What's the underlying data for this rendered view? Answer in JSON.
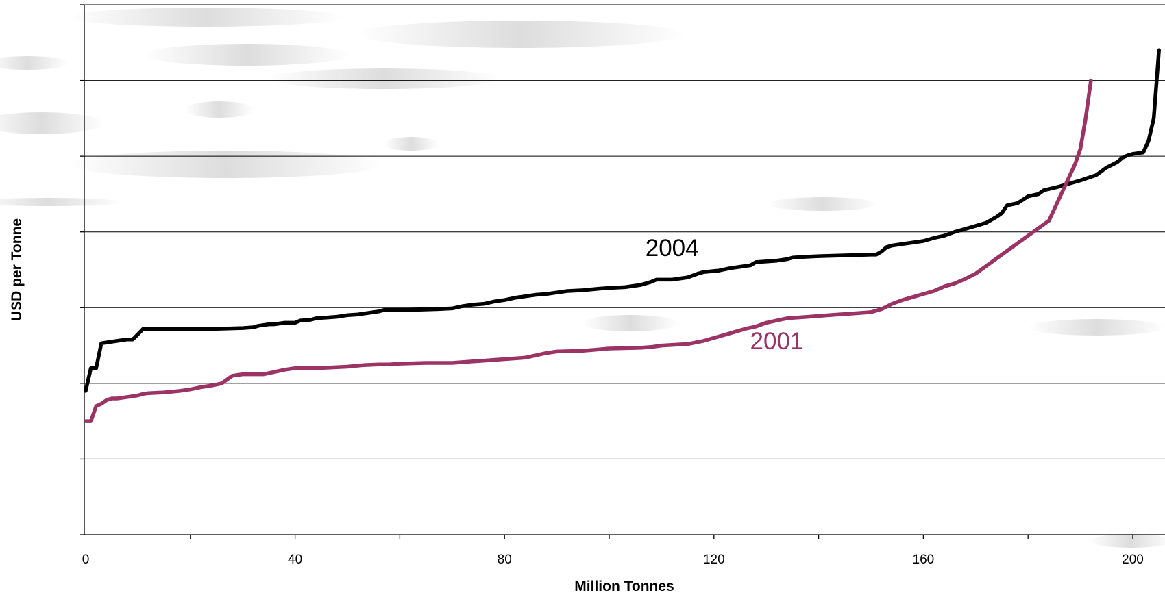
{
  "chart_data": {
    "type": "line",
    "title": "",
    "xlabel": "Million Tonnes",
    "ylabel": "USD per Tonne",
    "xlim": [
      0,
      205
    ],
    "ylim": [
      0,
      7
    ],
    "x_ticks": [
      0,
      40,
      80,
      120,
      160,
      200
    ],
    "x_tick_labels": [
      "0",
      "40",
      "80",
      "120",
      "160",
      "200"
    ],
    "y_tick_labels": [],
    "grid": "horizontal",
    "series": [
      {
        "name": "2004",
        "color": "#000000",
        "label_at": [
          112,
          3.68
        ],
        "x": [
          0,
          1,
          2,
          3,
          4,
          6,
          8,
          9,
          10,
          11,
          12,
          16,
          20,
          25,
          30,
          32,
          33,
          35,
          36,
          38,
          40,
          41,
          43,
          44,
          46,
          48,
          50,
          52,
          54,
          56,
          57,
          58,
          62,
          67,
          70,
          72,
          74,
          76,
          78,
          80,
          82,
          84,
          86,
          88,
          90,
          92,
          95,
          98,
          100,
          103,
          106,
          108,
          109,
          112,
          115,
          117,
          118,
          121,
          123,
          125,
          127,
          128,
          132,
          134,
          135,
          137,
          140,
          145,
          150,
          151,
          152,
          153,
          154,
          156,
          160,
          162,
          164,
          166,
          168,
          169,
          171,
          172,
          174,
          175,
          176,
          178,
          180,
          182,
          183,
          186,
          188,
          190,
          193,
          195,
          197,
          198,
          199,
          200,
          202,
          203,
          204,
          205
        ],
        "y": [
          1.9,
          2.2,
          2.2,
          2.53,
          2.54,
          2.56,
          2.58,
          2.58,
          2.65,
          2.72,
          2.72,
          2.72,
          2.72,
          2.72,
          2.73,
          2.74,
          2.76,
          2.78,
          2.78,
          2.8,
          2.8,
          2.83,
          2.84,
          2.86,
          2.87,
          2.88,
          2.9,
          2.91,
          2.93,
          2.95,
          2.97,
          2.97,
          2.97,
          2.98,
          2.99,
          3.02,
          3.04,
          3.05,
          3.08,
          3.1,
          3.13,
          3.15,
          3.17,
          3.18,
          3.2,
          3.22,
          3.23,
          3.25,
          3.26,
          3.27,
          3.3,
          3.34,
          3.37,
          3.37,
          3.4,
          3.45,
          3.47,
          3.49,
          3.52,
          3.54,
          3.56,
          3.6,
          3.62,
          3.64,
          3.66,
          3.67,
          3.68,
          3.69,
          3.7,
          3.7,
          3.74,
          3.8,
          3.82,
          3.84,
          3.88,
          3.92,
          3.95,
          4.0,
          4.04,
          4.06,
          4.1,
          4.12,
          4.2,
          4.25,
          4.35,
          4.38,
          4.47,
          4.5,
          4.55,
          4.6,
          4.64,
          4.68,
          4.75,
          4.85,
          4.92,
          4.98,
          5.01,
          5.03,
          5.05,
          5.2,
          5.5,
          6.4
        ]
      },
      {
        "name": "2001",
        "color": "#9B3365",
        "label_at": [
          132,
          2.45
        ],
        "x": [
          0,
          1,
          2,
          3,
          4,
          5,
          6,
          8,
          10,
          11,
          12,
          15,
          18,
          20,
          22,
          24,
          26,
          28,
          30,
          34,
          36,
          38,
          40,
          42,
          44,
          47,
          50,
          53,
          56,
          58,
          60,
          65,
          70,
          74,
          76,
          80,
          84,
          86,
          88,
          90,
          95,
          100,
          106,
          108,
          110,
          115,
          118,
          120,
          122,
          124,
          126,
          128,
          130,
          132,
          134,
          138,
          142,
          146,
          150,
          152,
          154,
          156,
          158,
          160,
          162,
          164,
          166,
          168,
          170,
          172,
          174,
          176,
          178,
          180,
          182,
          184,
          185,
          186,
          187,
          188,
          189,
          190,
          191,
          192
        ],
        "y": [
          1.5,
          1.5,
          1.7,
          1.73,
          1.78,
          1.8,
          1.8,
          1.82,
          1.84,
          1.86,
          1.87,
          1.88,
          1.9,
          1.92,
          1.95,
          1.97,
          2.0,
          2.1,
          2.12,
          2.12,
          2.15,
          2.18,
          2.2,
          2.2,
          2.2,
          2.21,
          2.22,
          2.24,
          2.25,
          2.25,
          2.26,
          2.27,
          2.27,
          2.29,
          2.3,
          2.32,
          2.34,
          2.37,
          2.4,
          2.42,
          2.43,
          2.46,
          2.47,
          2.48,
          2.5,
          2.52,
          2.56,
          2.6,
          2.64,
          2.68,
          2.72,
          2.75,
          2.8,
          2.83,
          2.86,
          2.88,
          2.9,
          2.92,
          2.94,
          2.98,
          3.05,
          3.1,
          3.14,
          3.18,
          3.22,
          3.28,
          3.32,
          3.38,
          3.45,
          3.55,
          3.65,
          3.75,
          3.85,
          3.95,
          4.05,
          4.15,
          4.3,
          4.45,
          4.6,
          4.75,
          4.9,
          5.1,
          5.5,
          6.0
        ]
      }
    ]
  }
}
